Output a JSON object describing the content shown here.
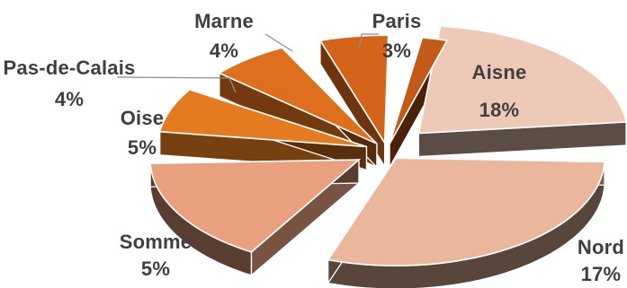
{
  "chart_data": {
    "type": "pie",
    "title": "",
    "legend": "none",
    "slices": [
      {
        "label": "Aisne",
        "value_label": "18%",
        "value": 18,
        "color": "#efc9b8"
      },
      {
        "label": "Nord",
        "value_label": "17%",
        "value": 17,
        "color": "#ebb79c"
      },
      {
        "label": "Somme",
        "value_label": "5%",
        "value": 5,
        "color": "#e8a07f"
      },
      {
        "label": "Oise",
        "value_label": "5%",
        "value": 5,
        "color": "#e57b20"
      },
      {
        "label": "Pas-de-Calais",
        "value_label": "4%",
        "value": 4,
        "color": "#de6f1c"
      },
      {
        "label": "Marne",
        "value_label": "4%",
        "value": 4,
        "color": "#d3641a"
      },
      {
        "label": "Paris",
        "value_label": "3%",
        "value": 3,
        "color": "#c25a18"
      }
    ]
  }
}
